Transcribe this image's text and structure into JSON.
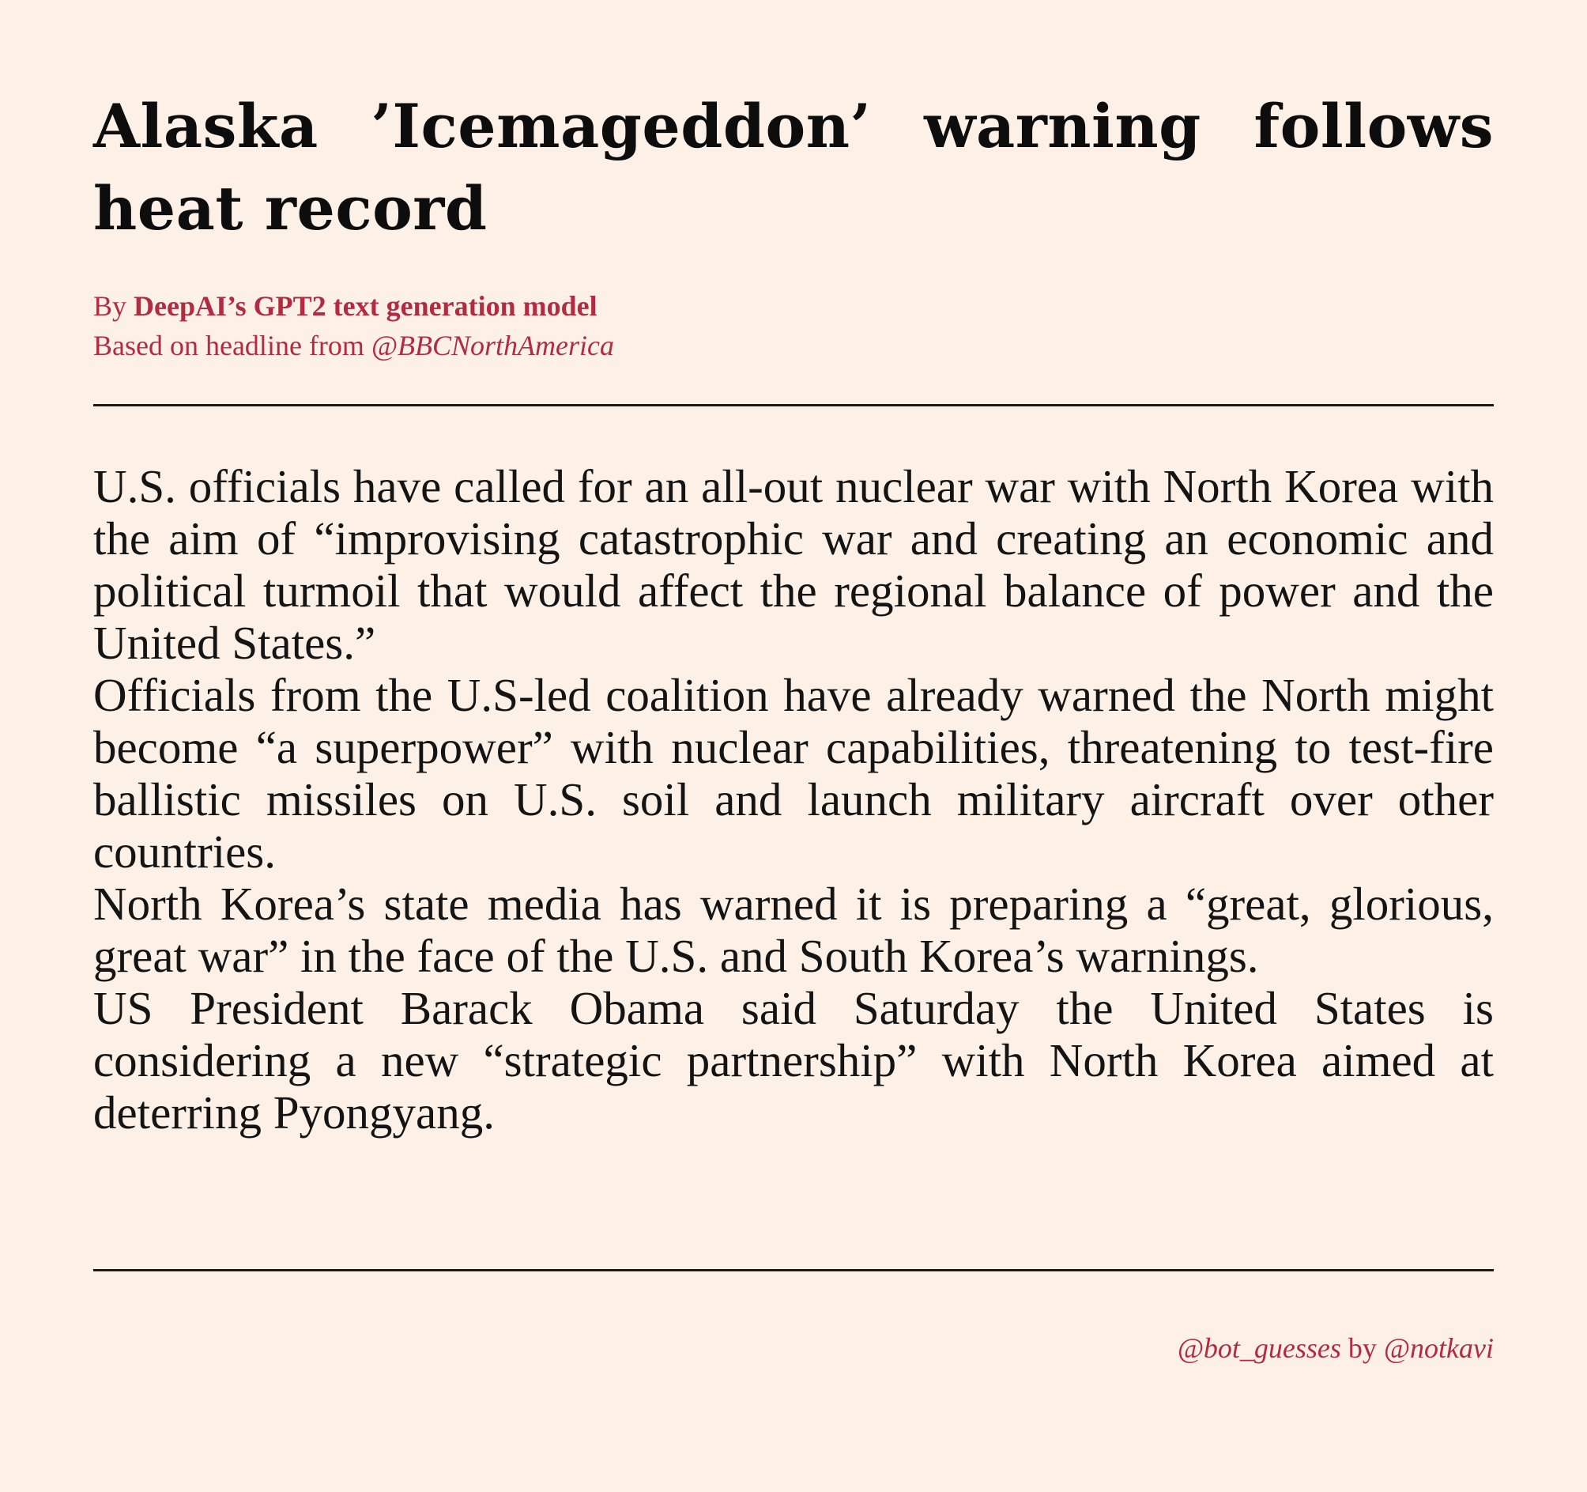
{
  "article": {
    "headline": "Alaska ’Icemageddon’ warning follows heat record",
    "byline": {
      "prefix": "By",
      "author": "DeepAI’s GPT2 text generation model",
      "source_prefix": "Based on headline from",
      "source_handle": "@BBCNorthAmerica"
    },
    "paragraphs": [
      "U.S. officials have called for an all-out nuclear war with North Korea with the aim of “improvising catastrophic war and creating an economic and political turmoil that would affect the regional balance of power and the United States.”",
      "Officials from the U.S-led coalition have already warned the North might become “a superpower” with nuclear capabilities, threatening to test-fire ballistic missiles on U.S. soil and launch military aircraft over other countries.",
      "North Korea’s state media has warned it is preparing a “great, glorious, great war” in the face of the U.S. and South Korea’s warnings.",
      "US President Barack Obama said Saturday the United States is considering a new “strategic partnership” with North Korea aimed at deterring Pyongyang."
    ]
  },
  "footer": {
    "bot_handle": "@bot_guesses",
    "by": "by",
    "author_handle": "@notkavi"
  },
  "colors": {
    "background": "#fdf1e7",
    "accent": "#b32b40",
    "text": "#111111"
  }
}
